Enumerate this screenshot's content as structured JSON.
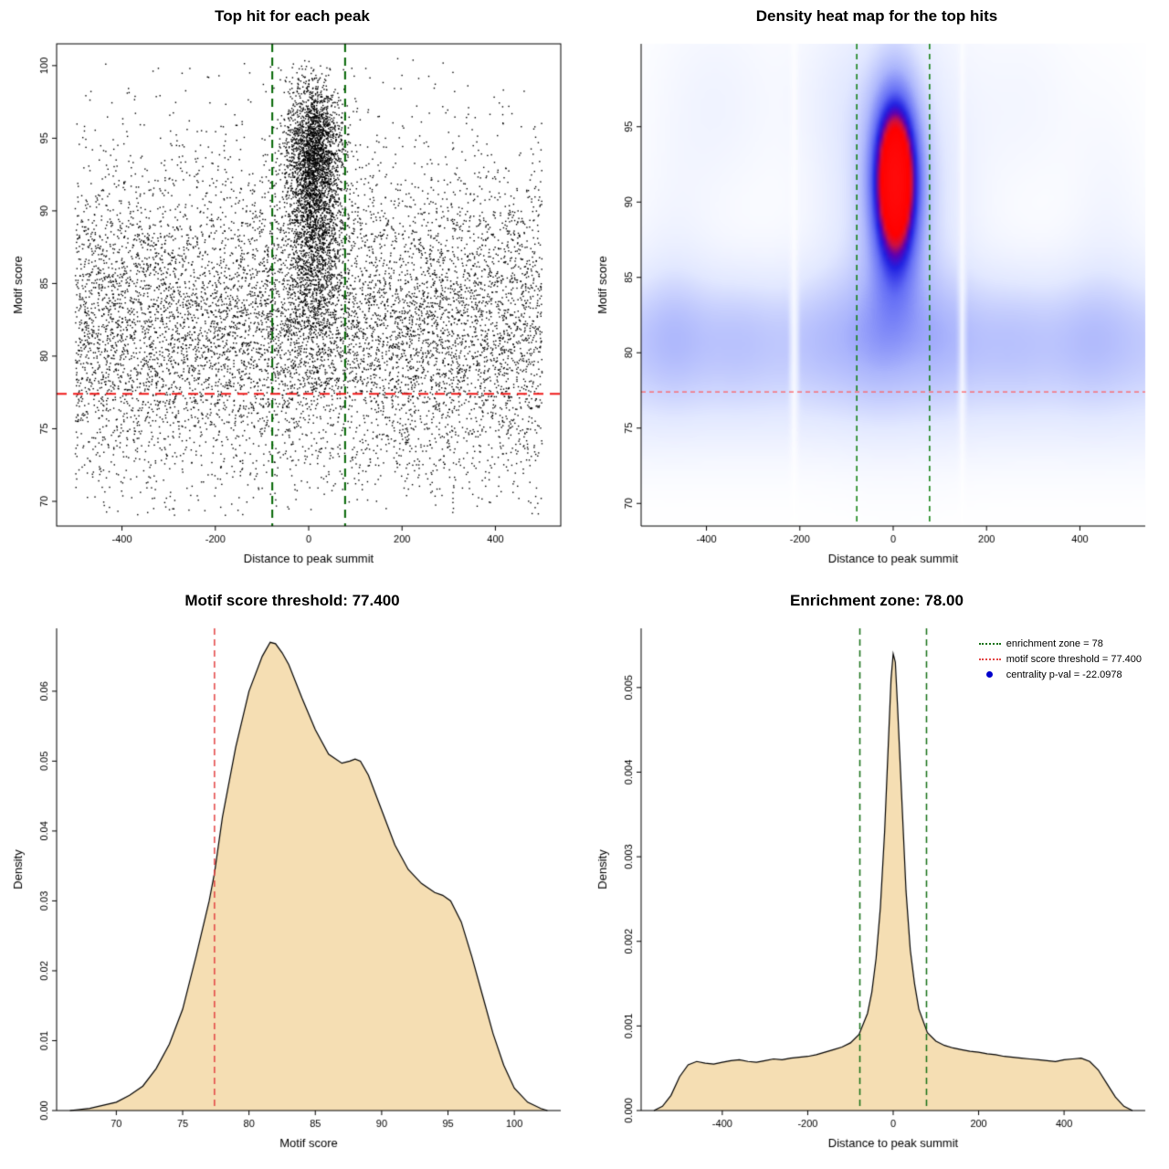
{
  "page": {
    "background": "#ffffff"
  },
  "chart_data": [
    {
      "id": "tophits-scatter",
      "type": "scatter",
      "title": "Top hit for each peak",
      "xlabel": "Distance to peak summit",
      "ylabel": "Motif score",
      "xlim": [
        -540,
        540
      ],
      "ylim": [
        68.3,
        101.5
      ],
      "xticks": {
        "values": [
          -400,
          -200,
          0,
          200,
          400
        ],
        "labels": [
          "-400",
          "-200",
          "0",
          "200",
          "400"
        ]
      },
      "yticks": {
        "values": [
          70,
          75,
          80,
          85,
          90,
          95,
          100
        ],
        "labels": [
          "70",
          "75",
          "80",
          "85",
          "90",
          "95",
          "100"
        ]
      },
      "box": true,
      "point_color": "#000000",
      "point_size": 1.4,
      "vlines": {
        "x": [
          -78,
          78
        ],
        "color": "#006400",
        "dash": [
          9,
          6
        ],
        "width": 2
      },
      "hline": {
        "y": 77.4,
        "color": "#f01818",
        "dash": [
          11,
          7
        ],
        "width": 2
      },
      "model": {
        "seed": 1337,
        "background": {
          "n": 8200,
          "x_min": -500,
          "x_max": 500,
          "y_mean": 82.2,
          "y_sd": 5.4,
          "y_min": 69,
          "y_max": 100.6
        },
        "sprinkle": {
          "n": 500,
          "x_min": -500,
          "x_max": 500,
          "y_min": 70,
          "y_max": 100.4
        },
        "cluster": {
          "n": 3800,
          "x_mean": 12,
          "x_sd": 30,
          "y_max": 100.2,
          "components": [
            {
              "w": 0.5,
              "mean": 94.3,
              "sd": 2.3
            },
            {
              "w": 0.3,
              "mean": 90.2,
              "sd": 2.8
            },
            {
              "w": 0.2,
              "mean": 85.0,
              "sd": 3.6
            }
          ]
        }
      }
    },
    {
      "id": "density-heatmap",
      "type": "heatmap",
      "title": "Density heat map for the top hits",
      "xlabel": "Distance to peak summit",
      "ylabel": "Motif score",
      "xlim": [
        -540,
        540
      ],
      "ylim": [
        68.5,
        100.5
      ],
      "xticks": {
        "values": [
          -400,
          -200,
          0,
          200,
          400
        ],
        "labels": [
          "-400",
          "-200",
          "0",
          "200",
          "400"
        ]
      },
      "yticks": {
        "values": [
          70,
          75,
          80,
          85,
          90,
          95
        ],
        "labels": [
          "70",
          "75",
          "80",
          "85",
          "90",
          "95"
        ]
      },
      "box": false,
      "vlines": {
        "x": [
          -78,
          78
        ],
        "color": "#0b7d0b",
        "dash": [
          6,
          5
        ],
        "width": 1.5
      },
      "hline": {
        "y": 77.4,
        "color": "#ff5c5c",
        "dash": [
          5,
          4
        ],
        "width": 1.2
      },
      "field": {
        "grid": 150,
        "gamma": 0.85,
        "bands": [
          {
            "y": 81.0,
            "sd": 3.2,
            "amp": 0.45,
            "lumpy": true
          },
          {
            "y": 76.2,
            "sd": 2.6,
            "amp": 0.15,
            "lumpy": false
          }
        ],
        "lumps": [
          {
            "x": -470,
            "sd": 45,
            "amp": 0.22
          },
          {
            "x": -330,
            "sd": 55,
            "amp": 0.18
          },
          {
            "x": -150,
            "sd": 50,
            "amp": 0.15
          },
          {
            "x": -40,
            "sd": 45,
            "amp": 0.2
          },
          {
            "x": 110,
            "sd": 50,
            "amp": 0.16
          },
          {
            "x": 260,
            "sd": 60,
            "amp": 0.18
          },
          {
            "x": 420,
            "sd": 55,
            "amp": 0.22
          }
        ],
        "blobs": [
          {
            "x": 5,
            "sx": 100,
            "y": 90.5,
            "sy": 7.5,
            "amp": 0.5
          },
          {
            "x": 5,
            "sx": 36,
            "y": 91.5,
            "sy": 4.3,
            "amp": 1.7
          },
          {
            "x": -380,
            "sx": 90,
            "y": 96.5,
            "sy": 4.5,
            "amp": 0.13
          },
          {
            "x": -120,
            "sx": 70,
            "y": 97.5,
            "sy": 3.5,
            "amp": 0.1
          },
          {
            "x": 280,
            "sx": 80,
            "y": 96.5,
            "sy": 4.0,
            "amp": 0.09
          },
          {
            "x": 460,
            "sx": 60,
            "y": 88.0,
            "sy": 6.0,
            "amp": 0.1
          },
          {
            "x": -470,
            "sx": 60,
            "y": 86.0,
            "sy": 5.0,
            "amp": 0.1
          }
        ],
        "gaps": [
          {
            "x": -212,
            "sd": 6,
            "depth": 0.85
          },
          {
            "x": 148,
            "sd": 5,
            "depth": 0.8
          }
        ],
        "colormap": [
          [
            0.0,
            [
              255,
              255,
              255
            ]
          ],
          [
            0.18,
            [
              226,
              232,
              255
            ]
          ],
          [
            0.36,
            [
              172,
              182,
              252
            ]
          ],
          [
            0.52,
            [
              100,
              110,
              245
            ]
          ],
          [
            0.62,
            [
              32,
              32,
              225
            ]
          ],
          [
            0.68,
            [
              90,
              0,
              180
            ]
          ],
          [
            0.74,
            [
              207,
              16,
              64
            ]
          ],
          [
            0.8,
            [
              255,
              0,
              0
            ]
          ],
          [
            1.0,
            [
              255,
              10,
              10
            ]
          ]
        ]
      }
    },
    {
      "id": "score-density",
      "type": "density",
      "title": "Motif score threshold: 77.400",
      "xlabel": "Motif score",
      "ylabel": "Density",
      "xlim": [
        65.5,
        103.5
      ],
      "ylim": [
        0,
        0.069
      ],
      "xticks": {
        "values": [
          70,
          75,
          80,
          85,
          90,
          95,
          100
        ],
        "labels": [
          "70",
          "75",
          "80",
          "85",
          "90",
          "95",
          "100"
        ]
      },
      "yticks": {
        "values": [
          0,
          0.01,
          0.02,
          0.03,
          0.04,
          0.05,
          0.06
        ],
        "labels": [
          "0.00",
          "0.01",
          "0.02",
          "0.03",
          "0.04",
          "0.05",
          "0.06"
        ]
      },
      "box": false,
      "fill_color": "#f5deb3",
      "line_color": "#000000",
      "vlines": {
        "x": [
          77.4
        ],
        "color": "#e34444",
        "dash": [
          7,
          5
        ],
        "width": 1.5
      },
      "points": [
        [
          66.5,
          0.0
        ],
        [
          68,
          0.0003
        ],
        [
          70,
          0.0012
        ],
        [
          71,
          0.0022
        ],
        [
          72,
          0.0035
        ],
        [
          73,
          0.006
        ],
        [
          74,
          0.0095
        ],
        [
          75,
          0.0145
        ],
        [
          76,
          0.022
        ],
        [
          77,
          0.03
        ],
        [
          77.4,
          0.034
        ],
        [
          78,
          0.042
        ],
        [
          79,
          0.052
        ],
        [
          80,
          0.06
        ],
        [
          81,
          0.065
        ],
        [
          81.6,
          0.067
        ],
        [
          82,
          0.0668
        ],
        [
          82.5,
          0.0655
        ],
        [
          83,
          0.0638
        ],
        [
          84,
          0.059
        ],
        [
          85,
          0.0545
        ],
        [
          86,
          0.051
        ],
        [
          87,
          0.0497
        ],
        [
          87.6,
          0.05
        ],
        [
          88,
          0.0503
        ],
        [
          88.4,
          0.05
        ],
        [
          89,
          0.048
        ],
        [
          90,
          0.043
        ],
        [
          91,
          0.038
        ],
        [
          92,
          0.0345
        ],
        [
          93,
          0.0325
        ],
        [
          94,
          0.0312
        ],
        [
          94.6,
          0.0308
        ],
        [
          95.2,
          0.03
        ],
        [
          96,
          0.027
        ],
        [
          96.8,
          0.022
        ],
        [
          97.6,
          0.0165
        ],
        [
          98.4,
          0.011
        ],
        [
          99.2,
          0.0065
        ],
        [
          100,
          0.0032
        ],
        [
          101,
          0.0012
        ],
        [
          102,
          0.0003
        ],
        [
          102.5,
          0.0
        ]
      ]
    },
    {
      "id": "distance-density",
      "type": "density",
      "title": "Enrichment zone: 78.00",
      "xlabel": "Distance to peak summit",
      "ylabel": "Density",
      "xlim": [
        -590,
        590
      ],
      "ylim": [
        0,
        0.0057
      ],
      "xticks": {
        "values": [
          -400,
          -200,
          0,
          200,
          400
        ],
        "labels": [
          "-400",
          "-200",
          "0",
          "200",
          "400"
        ]
      },
      "yticks": {
        "values": [
          0,
          0.001,
          0.002,
          0.003,
          0.004,
          0.005
        ],
        "labels": [
          "0.000",
          "0.001",
          "0.002",
          "0.003",
          "0.004",
          "0.005"
        ]
      },
      "box": false,
      "fill_color": "#f5deb3",
      "line_color": "#000000",
      "vlines": {
        "x": [
          -78,
          78
        ],
        "color": "#157015",
        "dash": [
          7,
          5
        ],
        "width": 1.5
      },
      "legend": {
        "items": [
          {
            "glyph": "dotted-line",
            "color": "#157015",
            "label": "enrichment zone = 78"
          },
          {
            "glyph": "dotted-line",
            "color": "#e34444",
            "label": "motif score threshold = 77.400"
          },
          {
            "glyph": "dot",
            "color": "#0000cc",
            "label": "centrality p-val = -22.0978"
          }
        ]
      },
      "points": [
        [
          -560,
          0.0
        ],
        [
          -540,
          5e-05
        ],
        [
          -520,
          0.00018
        ],
        [
          -500,
          0.0004
        ],
        [
          -480,
          0.00054
        ],
        [
          -460,
          0.00058
        ],
        [
          -440,
          0.00056
        ],
        [
          -420,
          0.00055
        ],
        [
          -400,
          0.00057
        ],
        [
          -380,
          0.00059
        ],
        [
          -360,
          0.0006
        ],
        [
          -340,
          0.00058
        ],
        [
          -320,
          0.00057
        ],
        [
          -300,
          0.00059
        ],
        [
          -280,
          0.00061
        ],
        [
          -260,
          0.0006
        ],
        [
          -240,
          0.00062
        ],
        [
          -220,
          0.00063
        ],
        [
          -200,
          0.00064
        ],
        [
          -180,
          0.00066
        ],
        [
          -160,
          0.00069
        ],
        [
          -140,
          0.00072
        ],
        [
          -120,
          0.00075
        ],
        [
          -100,
          0.0008
        ],
        [
          -80,
          0.0009
        ],
        [
          -60,
          0.00115
        ],
        [
          -50,
          0.0014
        ],
        [
          -40,
          0.0018
        ],
        [
          -30,
          0.0024
        ],
        [
          -20,
          0.0033
        ],
        [
          -10,
          0.0045
        ],
        [
          -5,
          0.0051
        ],
        [
          0,
          0.0054
        ],
        [
          5,
          0.0053
        ],
        [
          10,
          0.0048
        ],
        [
          20,
          0.0037
        ],
        [
          30,
          0.0026
        ],
        [
          40,
          0.0019
        ],
        [
          50,
          0.0015
        ],
        [
          60,
          0.0012
        ],
        [
          80,
          0.00092
        ],
        [
          100,
          0.00082
        ],
        [
          120,
          0.00077
        ],
        [
          140,
          0.00074
        ],
        [
          160,
          0.00072
        ],
        [
          180,
          0.0007
        ],
        [
          200,
          0.00069
        ],
        [
          220,
          0.00067
        ],
        [
          240,
          0.00066
        ],
        [
          260,
          0.00064
        ],
        [
          280,
          0.00063
        ],
        [
          300,
          0.00062
        ],
        [
          320,
          0.00061
        ],
        [
          340,
          0.0006
        ],
        [
          360,
          0.00059
        ],
        [
          380,
          0.00058
        ],
        [
          400,
          0.0006
        ],
        [
          420,
          0.00061
        ],
        [
          440,
          0.00062
        ],
        [
          460,
          0.00058
        ],
        [
          480,
          0.00048
        ],
        [
          500,
          0.00032
        ],
        [
          520,
          0.00016
        ],
        [
          540,
          5e-05
        ],
        [
          560,
          0.0
        ]
      ]
    }
  ]
}
